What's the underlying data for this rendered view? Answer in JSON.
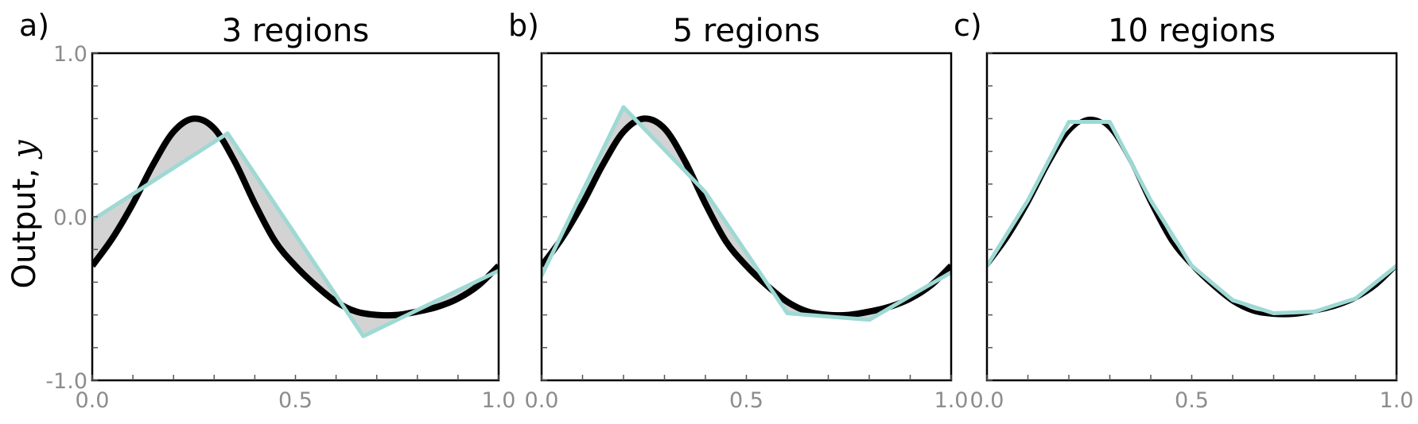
{
  "shared_ylabel": {
    "text": "Output, ",
    "var": "y"
  },
  "chart_data": [
    {
      "type": "line",
      "panel_letter": "a)",
      "title": "3 regions",
      "xlim": [
        0,
        1
      ],
      "ylim": [
        -1,
        1
      ],
      "xticks": [
        0.0,
        0.5,
        1.0
      ],
      "xtick_labels": [
        "0.0",
        "0.5",
        "1.0"
      ],
      "yticks": [
        -1.0,
        0.0,
        1.0
      ],
      "ytick_labels": [
        "-1.0",
        "0.0",
        "1.0"
      ],
      "shaded_error": true,
      "colors": {
        "true_function": "#000000",
        "approximation": "#9ed9d4",
        "error_fill": "#d3d3d3"
      },
      "series": [
        {
          "role": "true_function",
          "function": "0.6*sin(2*pi*x) - 0.3*cos(2*pi*x)^2 ... see x/y",
          "x": [
            0,
            0.05,
            0.1,
            0.15,
            0.2,
            0.25,
            0.3,
            0.35,
            0.4,
            0.45,
            0.5,
            0.55,
            0.6,
            0.65,
            0.7,
            0.75,
            0.8,
            0.85,
            0.9,
            0.95,
            1.0
          ],
          "y": [
            -0.3,
            -0.13,
            0.08,
            0.32,
            0.52,
            0.6,
            0.54,
            0.34,
            0.08,
            -0.15,
            -0.3,
            -0.42,
            -0.52,
            -0.58,
            -0.6,
            -0.6,
            -0.58,
            -0.55,
            -0.5,
            -0.42,
            -0.3
          ]
        },
        {
          "role": "approximation",
          "x": [
            0.0,
            0.333,
            0.667,
            1.0
          ],
          "y": [
            -0.02,
            0.51,
            -0.73,
            -0.33
          ]
        }
      ]
    },
    {
      "type": "line",
      "panel_letter": "b)",
      "title": "5 regions",
      "xlim": [
        0,
        1
      ],
      "ylim": [
        -1,
        1
      ],
      "xticks": [
        0.0,
        0.5,
        1.0
      ],
      "xtick_labels": [
        "0.0",
        "0.5",
        "1.0"
      ],
      "yticks": [
        -1.0,
        0.0,
        1.0
      ],
      "ytick_labels": [],
      "shaded_error": true,
      "colors": {
        "true_function": "#000000",
        "approximation": "#9ed9d4",
        "error_fill": "#d3d3d3"
      },
      "series": [
        {
          "role": "true_function",
          "x": [
            0,
            0.05,
            0.1,
            0.15,
            0.2,
            0.25,
            0.3,
            0.35,
            0.4,
            0.45,
            0.5,
            0.55,
            0.6,
            0.65,
            0.7,
            0.75,
            0.8,
            0.85,
            0.9,
            0.95,
            1.0
          ],
          "y": [
            -0.3,
            -0.13,
            0.08,
            0.32,
            0.52,
            0.6,
            0.54,
            0.34,
            0.08,
            -0.15,
            -0.3,
            -0.42,
            -0.52,
            -0.58,
            -0.6,
            -0.6,
            -0.58,
            -0.55,
            -0.5,
            -0.42,
            -0.3
          ]
        },
        {
          "role": "approximation",
          "x": [
            0.0,
            0.2,
            0.4,
            0.6,
            0.8,
            1.0
          ],
          "y": [
            -0.36,
            0.67,
            0.15,
            -0.59,
            -0.63,
            -0.34
          ]
        }
      ]
    },
    {
      "type": "line",
      "panel_letter": "c)",
      "title": "10 regions",
      "xlim": [
        0,
        1
      ],
      "ylim": [
        -1,
        1
      ],
      "xticks": [
        0.0,
        0.5,
        1.0
      ],
      "xtick_labels": [
        "0.0",
        "0.5",
        "1.0"
      ],
      "yticks": [
        -1.0,
        0.0,
        1.0
      ],
      "ytick_labels": [],
      "shaded_error": false,
      "colors": {
        "true_function": "#000000",
        "approximation": "#9ed9d4",
        "error_fill": "#d3d3d3"
      },
      "series": [
        {
          "role": "true_function",
          "x": [
            0,
            0.05,
            0.1,
            0.15,
            0.2,
            0.25,
            0.3,
            0.35,
            0.4,
            0.45,
            0.5,
            0.55,
            0.6,
            0.65,
            0.7,
            0.75,
            0.8,
            0.85,
            0.9,
            0.95,
            1.0
          ],
          "y": [
            -0.3,
            -0.13,
            0.08,
            0.32,
            0.52,
            0.6,
            0.54,
            0.34,
            0.08,
            -0.15,
            -0.3,
            -0.42,
            -0.52,
            -0.58,
            -0.6,
            -0.6,
            -0.58,
            -0.55,
            -0.5,
            -0.42,
            -0.3
          ]
        },
        {
          "role": "approximation",
          "x": [
            0.0,
            0.1,
            0.2,
            0.3,
            0.4,
            0.5,
            0.6,
            0.7,
            0.8,
            0.9,
            1.0
          ],
          "y": [
            -0.3,
            0.1,
            0.58,
            0.58,
            0.1,
            -0.3,
            -0.51,
            -0.59,
            -0.58,
            -0.5,
            -0.3
          ]
        }
      ]
    }
  ]
}
